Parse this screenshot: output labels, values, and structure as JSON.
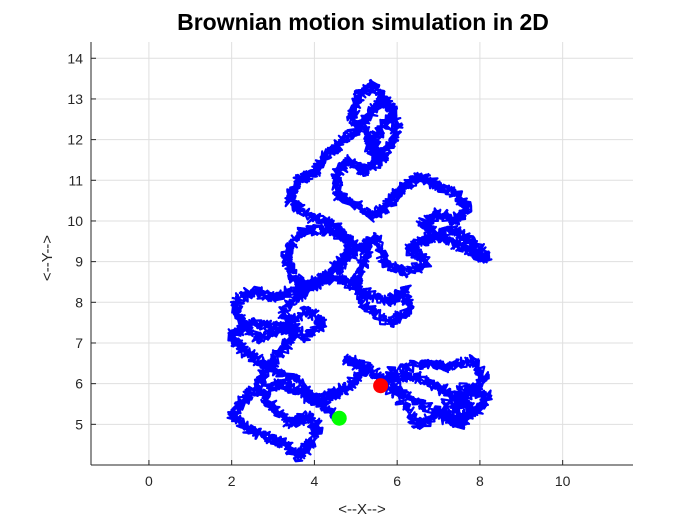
{
  "chart_data": {
    "type": "line",
    "title": "Brownian motion simulation in 2D",
    "xlabel": "<--X-->",
    "ylabel": "<--Y-->",
    "xlim": [
      -1.4,
      11.7
    ],
    "ylim": [
      4.0,
      14.4
    ],
    "xticks": [
      0,
      2,
      4,
      6,
      8,
      10
    ],
    "yticks": [
      5,
      6,
      7,
      8,
      9,
      10,
      11,
      12,
      13,
      14
    ],
    "grid": true,
    "series": [
      {
        "style": "solid",
        "color": "#0000ff",
        "waypoints": [
          [
            5.6,
            5.95
          ],
          [
            6.2,
            5.7
          ],
          [
            6.9,
            5.3
          ],
          [
            7.3,
            5.2
          ],
          [
            7.5,
            5.6
          ],
          [
            7.8,
            5.4
          ],
          [
            7.6,
            5.0
          ],
          [
            7.2,
            5.1
          ],
          [
            7.9,
            5.3
          ],
          [
            8.2,
            5.7
          ],
          [
            7.6,
            5.9
          ],
          [
            7.0,
            5.3
          ],
          [
            6.5,
            4.95
          ],
          [
            6.1,
            5.6
          ],
          [
            5.8,
            6.3
          ],
          [
            6.7,
            6.5
          ],
          [
            7.2,
            6.4
          ],
          [
            7.9,
            6.6
          ],
          [
            8.1,
            6.1
          ],
          [
            7.6,
            5.6
          ],
          [
            7.0,
            5.9
          ],
          [
            6.4,
            6.2
          ],
          [
            5.8,
            6.1
          ],
          [
            5.2,
            6.35
          ],
          [
            4.8,
            6.6
          ],
          [
            5.3,
            6.4
          ],
          [
            5.0,
            6.1
          ],
          [
            4.6,
            5.8
          ],
          [
            4.4,
            5.7
          ],
          [
            3.9,
            5.6
          ],
          [
            3.6,
            6.1
          ],
          [
            3.1,
            6.3
          ],
          [
            2.6,
            6.6
          ],
          [
            2.2,
            6.9
          ],
          [
            2.0,
            7.2
          ],
          [
            2.5,
            7.5
          ],
          [
            3.1,
            7.4
          ],
          [
            3.8,
            7.1
          ],
          [
            4.2,
            7.5
          ],
          [
            3.8,
            7.8
          ],
          [
            3.3,
            7.4
          ],
          [
            2.7,
            7.1
          ],
          [
            2.2,
            7.5
          ],
          [
            2.1,
            8.0
          ],
          [
            2.5,
            8.3
          ],
          [
            3.0,
            8.1
          ],
          [
            3.5,
            8.3
          ],
          [
            4.2,
            8.6
          ],
          [
            4.8,
            8.5
          ],
          [
            5.3,
            8.2
          ],
          [
            5.8,
            8.0
          ],
          [
            6.2,
            8.3
          ],
          [
            6.3,
            7.8
          ],
          [
            5.8,
            7.5
          ],
          [
            5.2,
            7.9
          ],
          [
            5.0,
            8.6
          ],
          [
            5.3,
            9.2
          ],
          [
            4.8,
            9.6
          ],
          [
            4.2,
            9.8
          ],
          [
            3.6,
            9.7
          ],
          [
            3.3,
            9.1
          ],
          [
            3.5,
            8.6
          ],
          [
            4.0,
            8.4
          ],
          [
            4.6,
            8.8
          ],
          [
            4.9,
            9.4
          ],
          [
            4.5,
            9.9
          ],
          [
            3.9,
            10.1
          ],
          [
            3.4,
            10.5
          ],
          [
            3.6,
            11.0
          ],
          [
            4.0,
            11.2
          ],
          [
            4.3,
            11.6
          ],
          [
            4.7,
            12.0
          ],
          [
            5.1,
            12.3
          ],
          [
            5.4,
            12.7
          ],
          [
            5.7,
            13.0
          ],
          [
            5.9,
            12.7
          ],
          [
            5.6,
            12.2
          ],
          [
            5.3,
            11.9
          ],
          [
            5.5,
            11.5
          ],
          [
            5.9,
            11.9
          ],
          [
            6.0,
            12.4
          ],
          [
            5.7,
            12.9
          ],
          [
            5.4,
            13.35
          ],
          [
            5.1,
            13.1
          ],
          [
            4.9,
            12.6
          ],
          [
            5.3,
            12.1
          ],
          [
            5.7,
            11.6
          ],
          [
            5.2,
            11.2
          ],
          [
            4.8,
            11.5
          ],
          [
            4.5,
            11.1
          ],
          [
            4.6,
            10.6
          ],
          [
            5.0,
            10.4
          ],
          [
            5.4,
            10.1
          ],
          [
            5.8,
            10.4
          ],
          [
            6.1,
            10.8
          ],
          [
            6.5,
            11.1
          ],
          [
            6.9,
            10.9
          ],
          [
            7.4,
            10.7
          ],
          [
            7.7,
            10.3
          ],
          [
            7.4,
            10.0
          ],
          [
            7.0,
            10.2
          ],
          [
            6.6,
            9.9
          ],
          [
            7.0,
            9.6
          ],
          [
            7.5,
            9.4
          ],
          [
            7.9,
            9.2
          ],
          [
            8.2,
            9.05
          ],
          [
            7.8,
            9.5
          ],
          [
            7.3,
            9.8
          ],
          [
            6.8,
            9.6
          ],
          [
            6.3,
            9.3
          ],
          [
            6.7,
            9.0
          ],
          [
            6.2,
            8.7
          ],
          [
            5.7,
            9.0
          ],
          [
            5.5,
            9.6
          ],
          [
            5.1,
            9.3
          ],
          [
            4.6,
            9.0
          ],
          [
            4.2,
            8.6
          ],
          [
            3.7,
            8.2
          ],
          [
            3.2,
            7.8
          ],
          [
            3.6,
            7.3
          ],
          [
            3.2,
            6.8
          ],
          [
            2.8,
            6.3
          ],
          [
            2.6,
            5.9
          ],
          [
            2.3,
            5.6
          ],
          [
            2.0,
            5.2
          ],
          [
            2.4,
            4.9
          ],
          [
            2.8,
            4.7
          ],
          [
            3.3,
            4.5
          ],
          [
            3.6,
            4.2
          ],
          [
            3.9,
            4.5
          ],
          [
            4.1,
            4.9
          ],
          [
            3.8,
            5.2
          ],
          [
            3.4,
            5.0
          ],
          [
            3.0,
            5.4
          ],
          [
            2.7,
            5.8
          ],
          [
            3.2,
            6.0
          ],
          [
            3.7,
            5.8
          ],
          [
            4.2,
            5.5
          ],
          [
            4.6,
            5.15
          ]
        ]
      }
    ],
    "markers": [
      {
        "x": 5.6,
        "y": 5.95,
        "color": "#ff0000"
      },
      {
        "x": 4.6,
        "y": 5.15,
        "color": "#00ff00"
      }
    ]
  }
}
